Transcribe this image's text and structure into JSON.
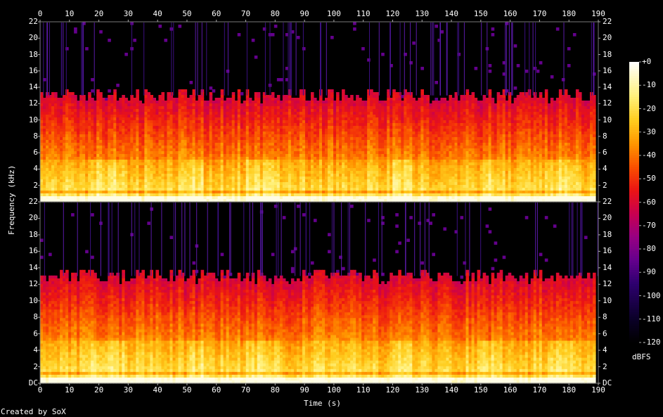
{
  "chart_data": {
    "type": "heatmap",
    "subtype": "spectrogram",
    "xlabel": "Time (s)",
    "ylabel": "Frequency (kHz)",
    "xlim": [
      0,
      190
    ],
    "x_ticks": [
      "0",
      "10",
      "20",
      "30",
      "40",
      "50",
      "60",
      "70",
      "80",
      "90",
      "100",
      "110",
      "120",
      "130",
      "140",
      "150",
      "160",
      "170",
      "180",
      "190"
    ],
    "ylim_khz": [
      0,
      22
    ],
    "channels": [
      {
        "y_ticks": [
          "22",
          "20",
          "18",
          "16",
          "14",
          "12",
          "10",
          "8",
          "6",
          "4",
          "2"
        ]
      },
      {
        "y_ticks": [
          "22",
          "20",
          "18",
          "16",
          "14",
          "12",
          "10",
          "8",
          "6",
          "4",
          "2",
          "DC"
        ]
      }
    ],
    "colorbar": {
      "label": "dBFS",
      "range": [
        -120,
        0
      ],
      "ticks": [
        "+0",
        "-10",
        "-20",
        "-30",
        "-40",
        "-50",
        "-60",
        "-70",
        "-80",
        "-90",
        "-100",
        "-110",
        "-120"
      ]
    },
    "content_cutoff_khz": 13,
    "loud_band_khz": [
      0,
      5
    ],
    "louder_segments_s": [
      [
        17,
        30
      ],
      [
        50,
        56
      ],
      [
        70,
        82
      ],
      [
        120,
        127
      ],
      [
        150,
        155
      ],
      [
        173,
        182
      ]
    ]
  },
  "footer": {
    "credit": "Created by SoX"
  }
}
